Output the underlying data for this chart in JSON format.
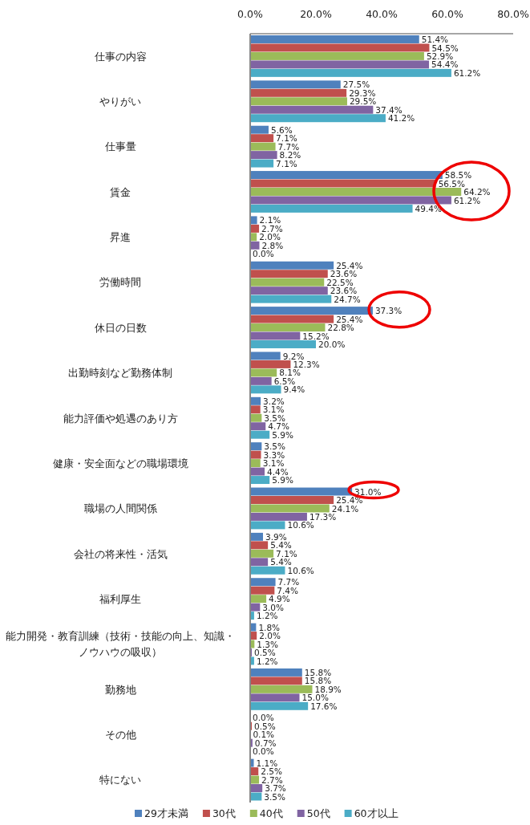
{
  "chart_data": {
    "type": "bar",
    "orientation": "horizontal",
    "categories": [
      "仕事の内容",
      "やりがい",
      "仕事量",
      "賃金",
      "昇進",
      "労働時間",
      "休日の日数",
      "出勤時刻など勤務体制",
      "能力評価や処遇のあり方",
      "健康・安全面などの職場環境",
      "職場の人間関係",
      "会社の将来性・活気",
      "福利厚生",
      "能力開発・教育訓練（技術・技能の向上、知識・ノウハウの吸収）",
      "勤務地",
      "その他",
      "特にない"
    ],
    "series": [
      {
        "name": "29才未満",
        "color": "#4f81bd",
        "values": [
          51.4,
          27.5,
          5.6,
          58.5,
          2.1,
          25.4,
          37.3,
          9.2,
          3.2,
          3.5,
          31.0,
          3.9,
          7.7,
          1.8,
          15.8,
          0.0,
          1.1
        ],
        "value_labels": [
          "51.4%",
          "27.5%",
          "5.6%",
          "58.5%",
          "2.1%",
          "25.4%",
          "37.3%",
          "9.2%",
          "3.2%",
          "3.5%",
          "31.0%",
          "3.9%",
          "7.7%",
          "1.8%",
          "15.8%",
          "0.0%",
          "1.1%"
        ]
      },
      {
        "name": "30代",
        "color": "#c0504d",
        "values": [
          54.5,
          29.3,
          7.1,
          56.5,
          2.7,
          23.6,
          25.4,
          12.3,
          3.1,
          3.3,
          25.4,
          5.4,
          7.4,
          2.0,
          15.8,
          0.5,
          2.5
        ],
        "value_labels": [
          "54.5%",
          "29.3%",
          "7.1%",
          "56.5%",
          "2.7%",
          "23.6%",
          "25.4%",
          "12.3%",
          "3.1%",
          "3.3%",
          "25.4%",
          "5.4%",
          "7.4%",
          "2.0%",
          "15.8%",
          "0.5%",
          "2.5%"
        ]
      },
      {
        "name": "40代",
        "color": "#9bbb59",
        "values": [
          52.9,
          29.5,
          7.7,
          64.2,
          2.0,
          22.5,
          22.8,
          8.1,
          3.5,
          3.1,
          24.1,
          7.1,
          4.9,
          1.3,
          18.9,
          0.1,
          2.7
        ],
        "value_labels": [
          "52.9%",
          "29.5%",
          "7.7%",
          "64.2%",
          "2.0%",
          "22.5%",
          "22.8%",
          "8.1%",
          "3.5%",
          "3.1%",
          "24.1%",
          "7.1%",
          "4.9%",
          "1.3%",
          "18.9%",
          "0.1%",
          "2.7%"
        ]
      },
      {
        "name": "50代",
        "color": "#8064a2",
        "values": [
          54.4,
          37.4,
          8.2,
          61.2,
          2.8,
          23.6,
          15.2,
          6.5,
          4.7,
          4.4,
          17.3,
          5.4,
          3.0,
          0.5,
          15.0,
          0.7,
          3.7
        ],
        "value_labels": [
          "54.4%",
          "37.4%",
          "8.2%",
          "61.2%",
          "2.8%",
          "23.6%",
          "15.2%",
          "6.5%",
          "4.7%",
          "4.4%",
          "17.3%",
          "5.4%",
          "3.0%",
          "0.5%",
          "15.0%",
          "0.7%",
          "3.7%"
        ]
      },
      {
        "name": "60才以上",
        "color": "#4bacc6",
        "values": [
          61.2,
          41.2,
          7.1,
          49.4,
          0.0,
          24.7,
          20.0,
          9.4,
          5.9,
          5.9,
          10.6,
          10.6,
          1.2,
          1.2,
          17.6,
          0.0,
          3.5
        ],
        "value_labels": [
          "61.2%",
          "41.2%",
          "7.1%",
          "49.4%",
          "0.0%",
          "24.7%",
          "20.0%",
          "9.4%",
          "5.9%",
          "5.9%",
          "10.6%",
          "10.6%",
          "1.2%",
          "1.2%",
          "17.6%",
          "0.0%",
          "3.5%"
        ]
      }
    ],
    "xlim": [
      0,
      80
    ],
    "xticks": [
      {
        "value": 0,
        "label": "0.0%"
      },
      {
        "value": 20,
        "label": "20.0%"
      },
      {
        "value": 40,
        "label": "40.0%"
      },
      {
        "value": 60,
        "label": "60.0%"
      },
      {
        "value": 80,
        "label": "80.0%"
      }
    ],
    "grid": false,
    "legend": "bottom"
  }
}
